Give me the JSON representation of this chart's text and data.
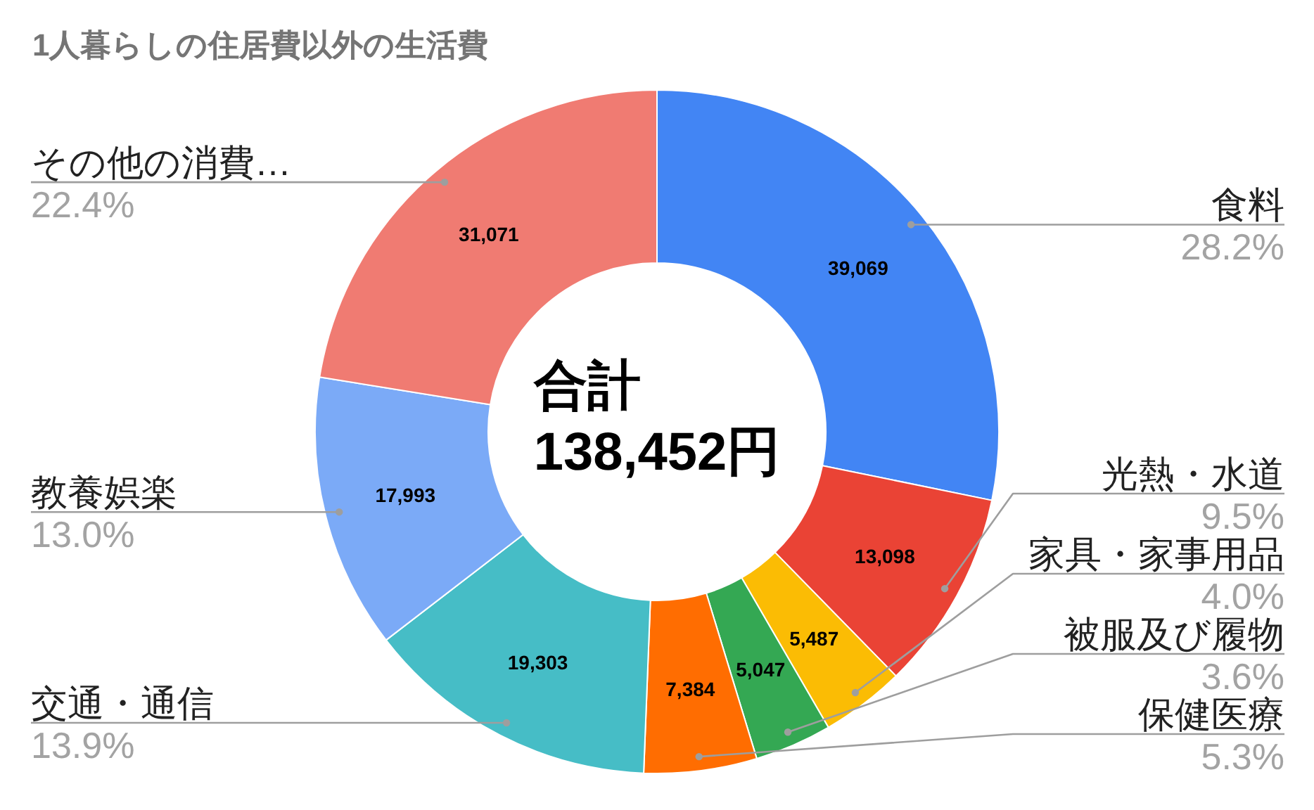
{
  "chart_data": {
    "type": "donut",
    "title": "1人暮らしの住居費以外の生活費",
    "categories": [
      "食料",
      "光熱・水道",
      "家具・家事用品",
      "被服及び履物",
      "保健医療",
      "交通・通信",
      "教養娯楽",
      "その他の消費…"
    ],
    "values": [
      39069,
      13098,
      5487,
      5047,
      7384,
      19303,
      17993,
      31071
    ],
    "colors": [
      "#4285f4",
      "#ea4335",
      "#fbbc04",
      "#34a853",
      "#ff6d01",
      "#46bdc6",
      "#7baaf7",
      "#f07b72"
    ],
    "value_labels": [
      "39,069",
      "13,098",
      "5,487",
      "5,047",
      "7,384",
      "19,303",
      "17,993",
      "31,071"
    ],
    "annotations": [
      "合計",
      "138,452円",
      {
        "text": "28.2%",
        "x": "食料"
      },
      {
        "text": "9.5%",
        "x": "光熱・水道"
      },
      {
        "text": "4.0%",
        "x": "家具・家事用品"
      },
      {
        "text": "3.6%",
        "x": "被服及び履物"
      },
      {
        "text": "5.3%",
        "x": "保健医療"
      },
      {
        "text": "13.9%",
        "x": "交通・通信"
      },
      {
        "text": "13.0%",
        "x": "教養娯楽"
      },
      {
        "text": "22.4%",
        "x": "その他の消費…"
      }
    ]
  }
}
